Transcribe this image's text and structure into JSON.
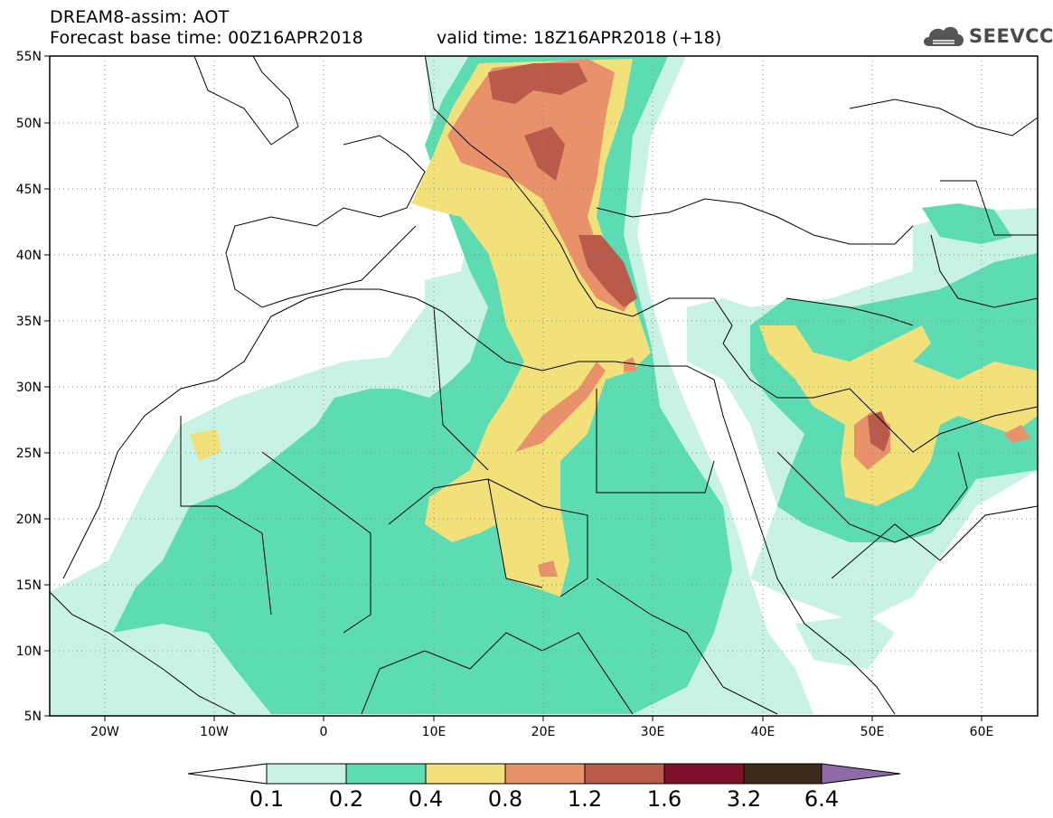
{
  "header": {
    "title": "DREAM8-assim: AOT",
    "base_time": "Forecast base time: 00Z16APR2018",
    "valid_time": "valid time: 18Z16APR2018 (+18)"
  },
  "logo": {
    "text": "SEEVCCC",
    "icon": "cloud-icon"
  },
  "axes": {
    "lat_labels": [
      "55N",
      "50N",
      "45N",
      "40N",
      "35N",
      "30N",
      "25N",
      "20N",
      "15N",
      "10N",
      "5N"
    ],
    "lon_labels": [
      "20W",
      "10W",
      "0",
      "10E",
      "20E",
      "30E",
      "40E",
      "50E",
      "60E"
    ],
    "lon_range": [
      -25,
      65
    ],
    "lat_range": [
      5,
      55
    ],
    "grid": true
  },
  "colorbar": {
    "labels": [
      "0.1",
      "0.2",
      "0.4",
      "0.8",
      "1.2",
      "1.6",
      "3.2",
      "6.4"
    ],
    "colors": [
      "#ffffff",
      "#c8f2e6",
      "#5ddcb4",
      "#f2e07a",
      "#e8916a",
      "#b95a4a",
      "#7d0f2a",
      "#3e2a18",
      "#8e6aa8"
    ]
  },
  "field_colors": {
    "lt01": "#ffffff",
    "c01": "#c8f2e6",
    "c02": "#5ddcb4",
    "c04": "#f2e07a",
    "c08": "#e8916a",
    "c12": "#b95a4a"
  }
}
